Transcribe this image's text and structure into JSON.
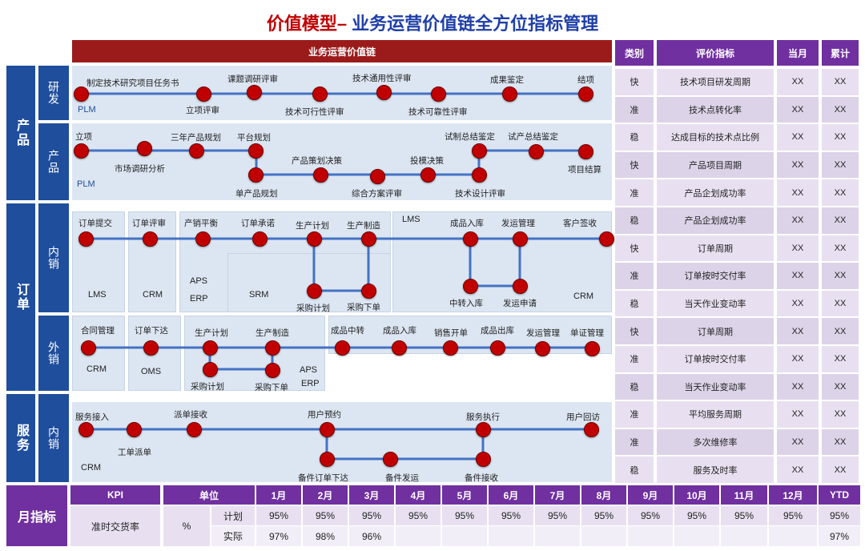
{
  "title": {
    "red": "价值模型–",
    "blue": " 业务运营价值链全方位指标管理"
  },
  "chain_header": "业务运营价值链",
  "side": {
    "product": "产品",
    "order": "订单",
    "service": "服务",
    "monthly": "月指标"
  },
  "sub": {
    "rd": "研发",
    "product": "产品",
    "domestic": "内销",
    "foreign": "外销",
    "service": "内销"
  },
  "rd": {
    "nodes": [
      "制定技术研究项目任务书",
      "立项评审",
      "课题调研评审",
      "技术可行性评审",
      "技术通用性评审",
      "技术可靠性评审",
      "成果鉴定",
      "结项"
    ],
    "system": "PLM"
  },
  "product": {
    "nodes": [
      "立项",
      "市场调研分析",
      "三年产品规划",
      "平台规划",
      "单产品规划",
      "产品策划决策",
      "综合方案评审",
      "投模决策",
      "技术设计评审",
      "试制总结鉴定",
      "试产总结鉴定",
      "项目结算"
    ],
    "system": "PLM"
  },
  "domestic": {
    "nodes": [
      "订单提交",
      "订单评审",
      "产销平衡",
      "订单承诺",
      "生产计划",
      "生产制造",
      "采购计划",
      "采购下单",
      "成品入库",
      "发运管理",
      "中转入库",
      "发运申请",
      "客户签收"
    ],
    "systems": [
      "LMS",
      "CRM",
      "APS",
      "ERP",
      "SRM",
      "LMS",
      "CRM"
    ]
  },
  "foreign": {
    "nodes": [
      "合同管理",
      "订单下达",
      "生产计划",
      "生产制造",
      "采购计划",
      "采购下单",
      "成品中转",
      "成品入库",
      "销售开单",
      "成品出库",
      "发运管理",
      "单证管理"
    ],
    "systems": [
      "CRM",
      "OMS",
      "APS",
      "ERP"
    ]
  },
  "service": {
    "nodes": [
      "服务接入",
      "工单派单",
      "派单接收",
      "用户预约",
      "备件订单下达",
      "备件发运",
      "服务执行",
      "备件接收",
      "用户回访"
    ],
    "system": "CRM"
  },
  "metrics": {
    "headers": [
      "类别",
      "评价指标",
      "当月",
      "累计"
    ],
    "rows": [
      [
        "快",
        "技术项目研发周期",
        "XX",
        "XX"
      ],
      [
        "准",
        "技术点转化率",
        "XX",
        "XX"
      ],
      [
        "稳",
        "达成目标的技术点比例",
        "XX",
        "XX"
      ],
      [
        "快",
        "产品项目周期",
        "XX",
        "XX"
      ],
      [
        "准",
        "产品企划成功率",
        "XX",
        "XX"
      ],
      [
        "稳",
        "产品企划成功率",
        "XX",
        "XX"
      ],
      [
        "快",
        "订单周期",
        "XX",
        "XX"
      ],
      [
        "准",
        "订单按时交付率",
        "XX",
        "XX"
      ],
      [
        "稳",
        "当天作业变动率",
        "XX",
        "XX"
      ],
      [
        "快",
        "订单周期",
        "XX",
        "XX"
      ],
      [
        "准",
        "订单按时交付率",
        "XX",
        "XX"
      ],
      [
        "稳",
        "当天作业变动率",
        "XX",
        "XX"
      ],
      [
        "准",
        "平均服务周期",
        "XX",
        "XX"
      ],
      [
        "准",
        "多次维修率",
        "XX",
        "XX"
      ],
      [
        "稳",
        "服务及时率",
        "XX",
        "XX"
      ]
    ]
  },
  "kpi": {
    "headers": [
      "KPI",
      "单位",
      "",
      "1月",
      "2月",
      "3月",
      "4月",
      "5月",
      "6月",
      "7月",
      "8月",
      "9月",
      "10月",
      "11月",
      "12月",
      "YTD"
    ],
    "name": "准时交货率",
    "unit": "%",
    "plan_label": "计划",
    "actual_label": "实际",
    "plan": [
      "95%",
      "95%",
      "95%",
      "95%",
      "95%",
      "95%",
      "95%",
      "95%",
      "95%",
      "95%",
      "95%",
      "95%",
      "95%"
    ],
    "actual": [
      "97%",
      "98%",
      "96%",
      "",
      "",
      "",
      "",
      "",
      "",
      "",
      "",
      "",
      "97%"
    ]
  },
  "colors": {
    "node": "#c00000",
    "line": "#4472c4",
    "lane": "#dce6f2",
    "blue": "#1f4e9c",
    "purple": "#7030a0",
    "dark_red": "#9b1b1b"
  }
}
